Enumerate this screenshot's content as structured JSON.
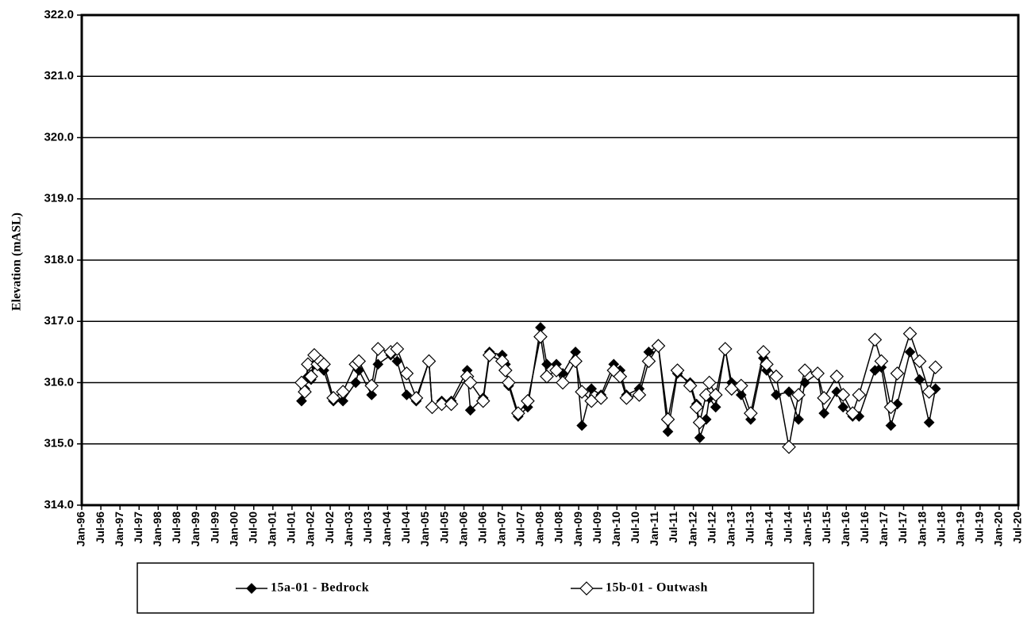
{
  "chart_data": {
    "type": "line",
    "y_label": "Elevation (mASL)",
    "x": [
      "2001-10",
      "2001-11",
      "2001-12",
      "2002-01",
      "2002-02",
      "2002-03",
      "2002-04",
      "2002-05",
      "2002-08",
      "2002-11",
      "2003-03",
      "2003-04",
      "2003-08",
      "2003-10",
      "2004-02",
      "2004-04",
      "2004-07",
      "2004-10",
      "2005-02",
      "2005-03",
      "2005-06",
      "2005-09",
      "2006-02",
      "2006-03",
      "2006-07",
      "2006-09",
      "2007-01",
      "2007-02",
      "2007-03",
      "2007-06",
      "2007-09",
      "2008-01",
      "2008-03",
      "2008-06",
      "2008-08",
      "2008-12",
      "2009-02",
      "2009-05",
      "2009-08",
      "2009-12",
      "2010-02",
      "2010-04",
      "2010-08",
      "2010-11",
      "2011-02",
      "2011-05",
      "2011-08",
      "2011-12",
      "2012-02",
      "2012-03",
      "2012-05",
      "2012-06",
      "2012-08",
      "2012-11",
      "2013-01",
      "2013-04",
      "2013-07",
      "2013-11",
      "2013-12",
      "2014-03",
      "2014-07",
      "2014-10",
      "2014-12",
      "2015-04",
      "2015-06",
      "2015-10",
      "2015-12",
      "2016-03",
      "2016-05",
      "2016-10",
      "2016-12",
      "2017-03",
      "2017-05",
      "2017-09",
      "2017-12",
      "2018-03",
      "2018-05"
    ],
    "series": [
      {
        "name": "15a-01 - Bedrock",
        "color": "#000000",
        "marker_fill": "#000000",
        "values": [
          315.7,
          315.9,
          316.1,
          316.05,
          316.3,
          316.35,
          316.3,
          316.2,
          315.7,
          315.7,
          316.0,
          316.2,
          315.8,
          316.3,
          316.45,
          316.35,
          315.8,
          315.7,
          316.35,
          315.6,
          315.7,
          315.7,
          316.2,
          315.55,
          315.75,
          316.5,
          316.45,
          316.3,
          315.95,
          315.45,
          315.6,
          316.9,
          316.3,
          316.3,
          316.15,
          316.5,
          315.3,
          315.9,
          315.8,
          316.3,
          316.2,
          315.8,
          315.9,
          316.5,
          316.6,
          315.2,
          316.15,
          316.0,
          315.65,
          315.1,
          315.4,
          315.75,
          315.6,
          316.55,
          316.0,
          315.8,
          315.4,
          316.4,
          316.2,
          315.8,
          315.85,
          315.4,
          316.0,
          316.15,
          315.5,
          315.85,
          315.6,
          315.45,
          315.45,
          316.2,
          316.25,
          315.3,
          315.65,
          316.5,
          316.05,
          315.35,
          315.9
        ]
      },
      {
        "name": "15b-01 - Outwash",
        "color": "#000000",
        "marker_fill": "#ffffff",
        "values": [
          316.0,
          315.85,
          316.3,
          316.1,
          316.45,
          316.3,
          316.35,
          316.3,
          315.75,
          315.85,
          316.3,
          316.35,
          315.95,
          316.55,
          316.5,
          316.55,
          316.15,
          315.75,
          316.35,
          315.6,
          315.65,
          315.65,
          316.1,
          316.0,
          315.7,
          316.45,
          316.35,
          316.2,
          316.0,
          315.5,
          315.7,
          316.75,
          316.1,
          316.2,
          316.0,
          316.35,
          315.85,
          315.7,
          315.75,
          316.2,
          316.1,
          315.75,
          315.8,
          316.35,
          316.6,
          315.4,
          316.2,
          315.95,
          315.6,
          315.35,
          315.8,
          316.0,
          315.8,
          316.55,
          315.9,
          315.95,
          315.5,
          316.5,
          316.3,
          316.1,
          314.95,
          315.8,
          316.2,
          316.15,
          315.75,
          316.1,
          315.8,
          315.5,
          315.8,
          316.7,
          316.35,
          315.6,
          316.15,
          316.8,
          316.35,
          315.85,
          316.25
        ]
      }
    ],
    "ylim": [
      314,
      322
    ],
    "yticks": [
      {
        "value": 314,
        "label": "314.0"
      },
      {
        "value": 315,
        "label": "315.0"
      },
      {
        "value": 316,
        "label": "316.0"
      },
      {
        "value": 317,
        "label": "317.0"
      },
      {
        "value": 318,
        "label": "318.0"
      },
      {
        "value": 319,
        "label": "319.0"
      },
      {
        "value": 320,
        "label": "320.0"
      },
      {
        "value": 321,
        "label": "321.0"
      },
      {
        "value": 322,
        "label": "322.0"
      }
    ],
    "xlim": [
      "1996-01",
      "2020-07"
    ],
    "xticks": [
      {
        "value": "1996-01",
        "label": "Jan-96"
      },
      {
        "value": "1996-07",
        "label": "Jul-96"
      },
      {
        "value": "1997-01",
        "label": "Jan-97"
      },
      {
        "value": "1997-07",
        "label": "Jul-97"
      },
      {
        "value": "1998-01",
        "label": "Jan-98"
      },
      {
        "value": "1998-07",
        "label": "Jul-98"
      },
      {
        "value": "1999-01",
        "label": "Jan-99"
      },
      {
        "value": "1999-07",
        "label": "Jul-99"
      },
      {
        "value": "2000-01",
        "label": "Jan-00"
      },
      {
        "value": "2000-07",
        "label": "Jul-00"
      },
      {
        "value": "2001-01",
        "label": "Jan-01"
      },
      {
        "value": "2001-07",
        "label": "Jul-01"
      },
      {
        "value": "2002-01",
        "label": "Jan-02"
      },
      {
        "value": "2002-07",
        "label": "Jul-02"
      },
      {
        "value": "2003-01",
        "label": "Jan-03"
      },
      {
        "value": "2003-07",
        "label": "Jul-03"
      },
      {
        "value": "2004-01",
        "label": "Jan-04"
      },
      {
        "value": "2004-07",
        "label": "Jul-04"
      },
      {
        "value": "2005-01",
        "label": "Jan-05"
      },
      {
        "value": "2005-07",
        "label": "Jul-05"
      },
      {
        "value": "2006-01",
        "label": "Jan-06"
      },
      {
        "value": "2006-07",
        "label": "Jul-06"
      },
      {
        "value": "2007-01",
        "label": "Jan-07"
      },
      {
        "value": "2007-07",
        "label": "Jul-07"
      },
      {
        "value": "2008-01",
        "label": "Jan-08"
      },
      {
        "value": "2008-07",
        "label": "Jul-08"
      },
      {
        "value": "2009-01",
        "label": "Jan-09"
      },
      {
        "value": "2009-07",
        "label": "Jul-09"
      },
      {
        "value": "2010-01",
        "label": "Jan-10"
      },
      {
        "value": "2010-07",
        "label": "Jul-10"
      },
      {
        "value": "2011-01",
        "label": "Jan-11"
      },
      {
        "value": "2011-07",
        "label": "Jul-11"
      },
      {
        "value": "2012-01",
        "label": "Jan-12"
      },
      {
        "value": "2012-07",
        "label": "Jul-12"
      },
      {
        "value": "2013-01",
        "label": "Jan-13"
      },
      {
        "value": "2013-07",
        "label": "Jul-13"
      },
      {
        "value": "2014-01",
        "label": "Jan-14"
      },
      {
        "value": "2014-07",
        "label": "Jul-14"
      },
      {
        "value": "2015-01",
        "label": "Jan-15"
      },
      {
        "value": "2015-07",
        "label": "Jul-15"
      },
      {
        "value": "2016-01",
        "label": "Jan-16"
      },
      {
        "value": "2016-07",
        "label": "Jul-16"
      },
      {
        "value": "2017-01",
        "label": "Jan-17"
      },
      {
        "value": "2017-07",
        "label": "Jul-17"
      },
      {
        "value": "2018-01",
        "label": "Jan-18"
      },
      {
        "value": "2018-07",
        "label": "Jul-18"
      },
      {
        "value": "2019-01",
        "label": "Jan-19"
      },
      {
        "value": "2019-07",
        "label": "Jul-19"
      },
      {
        "value": "2020-01",
        "label": "Jan-20"
      },
      {
        "value": "2020-07",
        "label": "Jul-20"
      }
    ],
    "grid": true,
    "legend": "bottom"
  }
}
